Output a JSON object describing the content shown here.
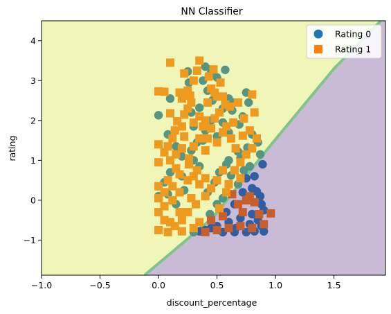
{
  "chart_data": {
    "type": "scatter",
    "title": "NN Classifier",
    "xlabel": "discount_percentage",
    "ylabel": "rating",
    "xlim": [
      -1.0,
      1.94
    ],
    "ylim": [
      -1.88,
      4.5
    ],
    "xticks": [
      -1.0,
      -0.5,
      0.0,
      0.5,
      1.0,
      1.5
    ],
    "yticks": [
      -1,
      0,
      1,
      2,
      3,
      4
    ],
    "xtick_labels": [
      "−1.0",
      "−0.5",
      "0.0",
      "0.5",
      "1.0",
      "1.5"
    ],
    "ytick_labels": [
      "−1",
      "0",
      "1",
      "2",
      "3",
      "4"
    ],
    "grid": false,
    "legend_position": "top-right",
    "background_regions": {
      "boundary_line": [
        [
          -0.12,
          -1.88
        ],
        [
          0.46,
          -0.45
        ],
        [
          0.95,
          1.35
        ],
        [
          1.5,
          3.3
        ],
        [
          1.9,
          4.5
        ]
      ],
      "class_1_region_color": "#f0f5b8",
      "class_0_region_color": "#c9bad5",
      "boundary_color": "#7cc68a"
    },
    "series": [
      {
        "name": "Rating 0",
        "marker": "circle",
        "color": "#2f5fa2",
        "color_in_rating1_region": "#559683",
        "legend_color": "#1f77b4",
        "points": [
          [
            0.0,
            2.13
          ],
          [
            0.1,
            2.55
          ],
          [
            0.08,
            1.65
          ],
          [
            0.25,
            3.23
          ],
          [
            0.26,
            2.95
          ],
          [
            0.28,
            2.2
          ],
          [
            0.35,
            2.32
          ],
          [
            0.38,
            3.0
          ],
          [
            0.4,
            3.35
          ],
          [
            0.42,
            2.75
          ],
          [
            0.45,
            3.2
          ],
          [
            0.46,
            2.5
          ],
          [
            0.5,
            3.08
          ],
          [
            0.55,
            2.3
          ],
          [
            0.57,
            3.27
          ],
          [
            0.6,
            2.55
          ],
          [
            0.63,
            2.25
          ],
          [
            0.65,
            2.45
          ],
          [
            0.69,
            1.9
          ],
          [
            0.72,
            2.1
          ],
          [
            0.75,
            2.7
          ],
          [
            0.77,
            2.45
          ],
          [
            0.3,
            1.85
          ],
          [
            0.4,
            1.75
          ],
          [
            0.45,
            2.0
          ],
          [
            0.5,
            1.6
          ],
          [
            0.55,
            1.95
          ],
          [
            0.6,
            1.7
          ],
          [
            0.28,
            1.25
          ],
          [
            0.33,
            1.45
          ],
          [
            0.38,
            1.5
          ],
          [
            0.2,
            1.1
          ],
          [
            0.15,
            1.35
          ],
          [
            0.1,
            0.7
          ],
          [
            0.2,
            0.6
          ],
          [
            0.05,
            0.45
          ],
          [
            0.22,
            0.25
          ],
          [
            0.08,
            0.15
          ],
          [
            0.0,
            0.1
          ],
          [
            0.3,
            1.0
          ],
          [
            0.35,
            0.85
          ],
          [
            0.15,
            -0.1
          ],
          [
            0.8,
            1.65
          ],
          [
            0.85,
            1.45
          ],
          [
            0.87,
            1.15
          ],
          [
            0.89,
            0.9
          ],
          [
            0.78,
            0.85
          ],
          [
            0.82,
            0.6
          ],
          [
            0.76,
            1.32
          ],
          [
            0.7,
            1.05
          ],
          [
            0.75,
            0.55
          ],
          [
            0.8,
            0.3
          ],
          [
            0.84,
            0.22
          ],
          [
            0.87,
            0.1
          ],
          [
            0.88,
            -0.1
          ],
          [
            0.9,
            -0.25
          ],
          [
            0.72,
            0.2
          ],
          [
            0.68,
            0.4
          ],
          [
            0.8,
            -0.35
          ],
          [
            0.85,
            -0.5
          ],
          [
            0.88,
            -0.65
          ],
          [
            0.78,
            -0.6
          ],
          [
            0.7,
            -0.45
          ],
          [
            0.65,
            -0.1
          ],
          [
            0.6,
            -0.55
          ],
          [
            0.55,
            0.05
          ],
          [
            0.5,
            -0.65
          ],
          [
            0.45,
            -0.7
          ],
          [
            0.4,
            -0.75
          ],
          [
            0.35,
            -0.78
          ],
          [
            0.3,
            -0.8
          ],
          [
            0.62,
            0.62
          ],
          [
            0.58,
            0.9
          ],
          [
            0.52,
            0.7
          ],
          [
            0.48,
            0.45
          ],
          [
            0.42,
            0.2
          ],
          [
            0.75,
            -0.8
          ],
          [
            0.65,
            -0.8
          ],
          [
            0.55,
            -0.8
          ],
          [
            0.82,
            -0.78
          ],
          [
            0.9,
            -0.78
          ],
          [
            0.68,
            1.22
          ],
          [
            0.6,
            1.0
          ],
          [
            0.73,
            0.75
          ],
          [
            0.66,
            -0.7
          ],
          [
            0.58,
            -0.3
          ],
          [
            0.5,
            -0.1
          ],
          [
            0.44,
            -0.35
          ]
        ]
      },
      {
        "name": "Rating 1",
        "marker": "square",
        "color": "#ee9a1f",
        "color_in_rating0_region": "#c65f2c",
        "legend_color": "#ff7f0e",
        "points": [
          [
            0.1,
            3.45
          ],
          [
            0.0,
            2.73
          ],
          [
            0.05,
            2.72
          ],
          [
            0.35,
            3.5
          ],
          [
            0.33,
            3.25
          ],
          [
            0.22,
            3.18
          ],
          [
            0.3,
            3.0
          ],
          [
            0.25,
            2.75
          ],
          [
            0.27,
            2.62
          ],
          [
            0.2,
            2.55
          ],
          [
            0.47,
            3.28
          ],
          [
            0.43,
            3.1
          ],
          [
            0.45,
            2.8
          ],
          [
            0.5,
            2.6
          ],
          [
            0.57,
            2.4
          ],
          [
            0.55,
            2.6
          ],
          [
            0.61,
            2.35
          ],
          [
            0.52,
            2.2
          ],
          [
            0.48,
            2.05
          ],
          [
            0.4,
            2.0
          ],
          [
            0.35,
            2.1
          ],
          [
            0.3,
            1.95
          ],
          [
            0.25,
            2.3
          ],
          [
            0.1,
            2.18
          ],
          [
            0.16,
            1.98
          ],
          [
            0.2,
            1.85
          ],
          [
            0.14,
            1.75
          ],
          [
            0.12,
            1.55
          ],
          [
            0.0,
            1.4
          ],
          [
            0.05,
            1.2
          ],
          [
            0.0,
            0.95
          ],
          [
            0.1,
            1.0
          ],
          [
            0.15,
            0.8
          ],
          [
            0.2,
            1.3
          ],
          [
            0.26,
            1.05
          ],
          [
            0.3,
            1.35
          ],
          [
            0.35,
            1.55
          ],
          [
            0.4,
            1.25
          ],
          [
            0.42,
            1.55
          ],
          [
            0.45,
            1.8
          ],
          [
            0.5,
            1.45
          ],
          [
            0.55,
            1.7
          ],
          [
            0.38,
            1.85
          ],
          [
            0.22,
            1.6
          ],
          [
            0.18,
            0.65
          ],
          [
            0.08,
            0.5
          ],
          [
            0.0,
            0.35
          ],
          [
            0.05,
            0.2
          ],
          [
            0.12,
            0.35
          ],
          [
            0.18,
            0.2
          ],
          [
            0.25,
            0.5
          ],
          [
            0.3,
            0.6
          ],
          [
            0.35,
            0.4
          ],
          [
            0.0,
            0.05
          ],
          [
            0.05,
            -0.15
          ],
          [
            0.12,
            0.0
          ],
          [
            0.18,
            -0.3
          ],
          [
            0.0,
            -0.3
          ],
          [
            0.05,
            -0.5
          ],
          [
            0.1,
            -0.55
          ],
          [
            0.0,
            -0.75
          ],
          [
            0.08,
            -0.8
          ],
          [
            0.14,
            -0.65
          ],
          [
            0.2,
            -0.5
          ],
          [
            0.25,
            -0.3
          ],
          [
            0.28,
            0.05
          ],
          [
            0.32,
            -0.1
          ],
          [
            0.4,
            0.1
          ],
          [
            0.45,
            0.3
          ],
          [
            0.5,
            0.5
          ],
          [
            0.55,
            0.75
          ],
          [
            0.6,
            0.4
          ],
          [
            0.65,
            0.75
          ],
          [
            0.7,
            0.55
          ],
          [
            0.63,
            0.15
          ],
          [
            0.68,
            -0.1
          ],
          [
            0.72,
            -0.3
          ],
          [
            0.75,
            0.0
          ],
          [
            0.78,
            0.1
          ],
          [
            0.82,
            -0.05
          ],
          [
            0.86,
            -0.35
          ],
          [
            0.9,
            -0.6
          ],
          [
            0.8,
            -0.7
          ],
          [
            0.7,
            -0.65
          ],
          [
            0.6,
            -0.7
          ],
          [
            0.5,
            -0.75
          ],
          [
            0.4,
            -0.8
          ],
          [
            0.3,
            -0.7
          ],
          [
            0.2,
            -0.78
          ],
          [
            0.55,
            -0.4
          ],
          [
            0.45,
            -0.5
          ],
          [
            0.35,
            -0.55
          ],
          [
            0.58,
            0.2
          ],
          [
            0.52,
            -0.2
          ],
          [
            0.7,
            0.95
          ],
          [
            0.75,
            1.15
          ],
          [
            0.8,
            1.3
          ],
          [
            0.84,
            1.55
          ],
          [
            0.78,
            1.75
          ],
          [
            0.72,
            1.62
          ],
          [
            0.66,
            1.3
          ],
          [
            0.62,
            1.55
          ],
          [
            0.96,
            -0.33
          ],
          [
            0.8,
            2.65
          ],
          [
            0.82,
            2.2
          ],
          [
            0.73,
            2.05
          ],
          [
            0.68,
            2.45
          ],
          [
            0.64,
            1.95
          ],
          [
            0.58,
            1.85
          ],
          [
            0.26,
            0.9
          ],
          [
            0.33,
            0.75
          ],
          [
            0.4,
            0.55
          ],
          [
            0.15,
            1.15
          ],
          [
            0.08,
            1.35
          ],
          [
            0.22,
            2.15
          ],
          [
            0.28,
            2.45
          ],
          [
            0.18,
            2.7
          ],
          [
            0.42,
            2.45
          ],
          [
            0.48,
            2.7
          ],
          [
            0.53,
            2.95
          ]
        ]
      }
    ]
  }
}
